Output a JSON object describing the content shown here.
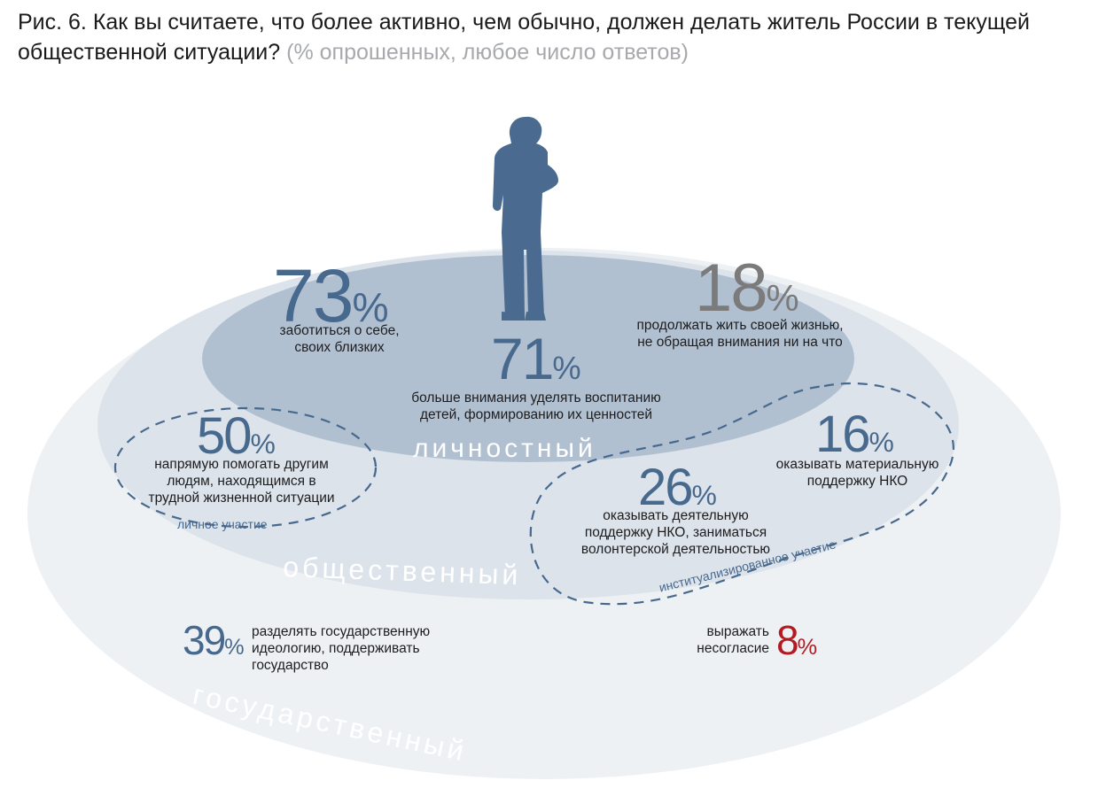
{
  "title": {
    "main": "Рис. 6. Как вы считаете, что более активно, чем обычно, должен делать житель России в текущей общественной ситуации?",
    "note": "(% опрошенных, любое число ответов)"
  },
  "rings": {
    "inner": "личностный",
    "middle": "общественный",
    "outer": "государственный"
  },
  "zones": {
    "personal": "личное участие",
    "institutional": "институализированное участие"
  },
  "items": {
    "care": {
      "value": "73",
      "unit": "%",
      "text1": "заботиться о себе,",
      "text2": "своих близких"
    },
    "upbringing": {
      "value": "71",
      "unit": "%",
      "text1": "больше внимания уделять воспитанию",
      "text2": "детей, формированию их ценностей"
    },
    "ignore": {
      "value": "18",
      "unit": "%",
      "text1": "продолжать жить своей жизнью,",
      "text2": "не обращая внимания ни на что"
    },
    "help": {
      "value": "50",
      "unit": "%",
      "text1": "напрямую помогать другим",
      "text2": "людям, находящимся в",
      "text3": "трудной жизненной ситуации"
    },
    "material_nko": {
      "value": "16",
      "unit": "%",
      "text1": "оказывать материальную",
      "text2": "поддержку НКО"
    },
    "volunteer": {
      "value": "26",
      "unit": "%",
      "text1": "оказывать деятельную",
      "text2": "поддержку НКО, заниматься",
      "text3": "волонтерской деятельностью"
    },
    "ideology": {
      "value": "39",
      "unit": "%",
      "text1": "разделять государственную",
      "text2": "идеологию, поддерживать",
      "text3": "государство"
    },
    "disagree": {
      "value": "8",
      "unit": "%",
      "text1": "выражать",
      "text2": "несогласие"
    }
  },
  "colors": {
    "outer_ring": "#eef1f4",
    "middle_ring": "#dce3ea",
    "inner_ring": "#b1c0d1",
    "accent_blue": "#48698e",
    "accent_gray": "#7b7b7b",
    "accent_red": "#b31b23"
  }
}
